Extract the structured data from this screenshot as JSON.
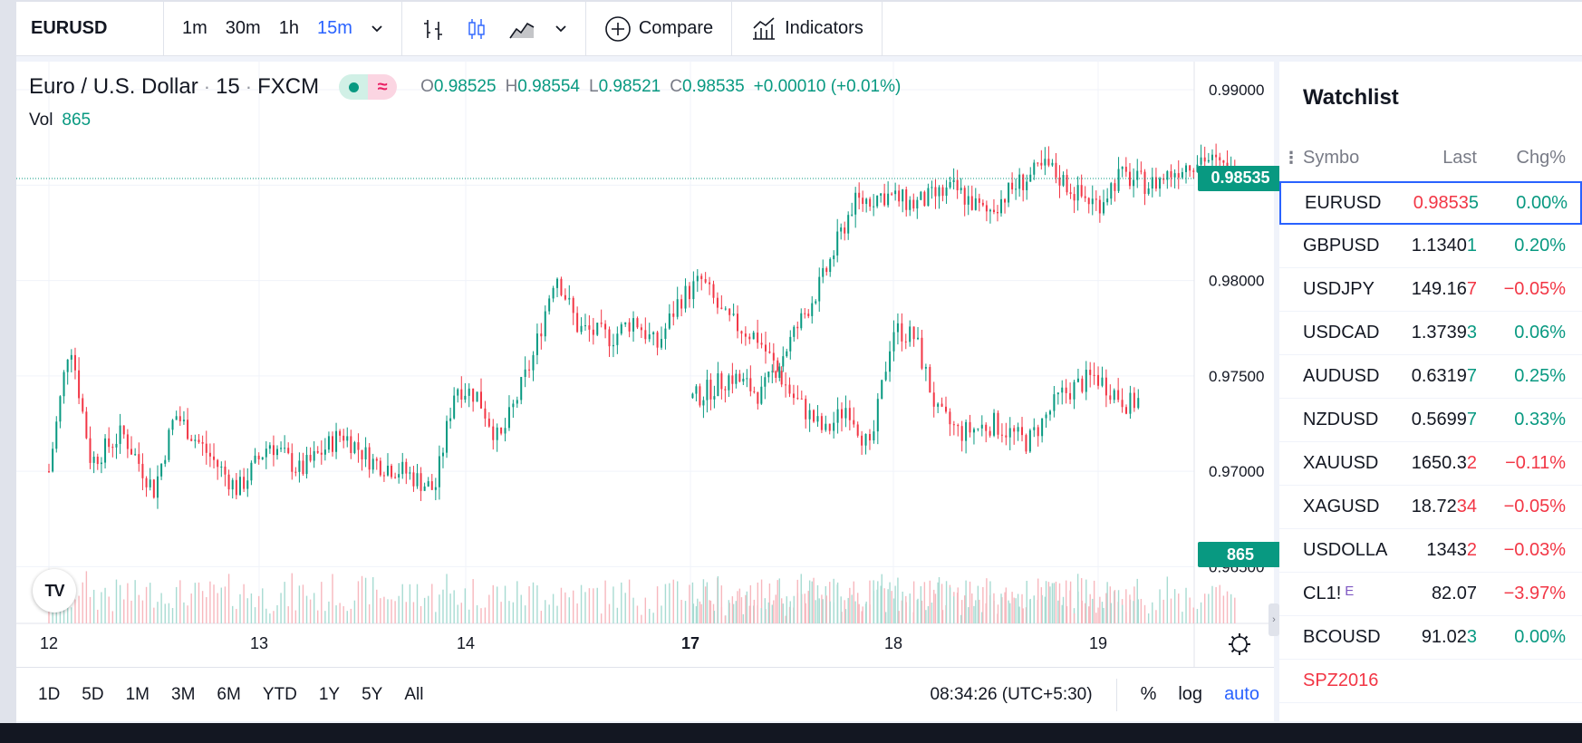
{
  "toolbar": {
    "symbol": "EURUSD",
    "intervals": [
      "1m",
      "30m",
      "1h",
      "15m"
    ],
    "active_interval": "15m",
    "compare_label": "Compare",
    "indicators_label": "Indicators"
  },
  "legend": {
    "name": "Euro / U.S. Dollar",
    "interval": "15",
    "exchange": "FXCM",
    "open_label": "O",
    "open": "0.98525",
    "high_label": "H",
    "high": "0.98554",
    "low_label": "L",
    "low": "0.98521",
    "close_label": "C",
    "close": "0.98535",
    "change": "+0.00010 (+0.01%)",
    "volume_label": "Vol",
    "volume": "865"
  },
  "logo_text": "TV",
  "colors": {
    "up": "#089981",
    "down": "#f23645",
    "accent": "#2962ff",
    "vol_up": "#a7dbd2",
    "vol_down": "#f7b7bd"
  },
  "chart_data": {
    "type": "candlestick",
    "y_ticks": [
      "0.99000",
      "0.98500",
      "0.98000",
      "0.97500",
      "0.97000",
      "0.96500"
    ],
    "ylim": [
      0.9625,
      0.991
    ],
    "x_ticks": [
      "12",
      "13",
      "14",
      "17",
      "18",
      "19"
    ],
    "bold_x_tick": "17",
    "last_price": "0.98535",
    "last_volume": "865",
    "price_path": [
      [
        12.0,
        0.97
      ],
      [
        12.1,
        0.977
      ],
      [
        12.2,
        0.9705
      ],
      [
        12.35,
        0.972
      ],
      [
        12.5,
        0.969
      ],
      [
        12.6,
        0.973
      ],
      [
        12.75,
        0.971
      ],
      [
        12.9,
        0.969
      ],
      [
        13.05,
        0.9715
      ],
      [
        13.2,
        0.97
      ],
      [
        13.4,
        0.972
      ],
      [
        13.55,
        0.9705
      ],
      [
        13.7,
        0.97
      ],
      [
        13.85,
        0.969
      ],
      [
        13.95,
        0.9745
      ],
      [
        14.05,
        0.974
      ],
      [
        14.15,
        0.9715
      ],
      [
        14.3,
        0.976
      ],
      [
        14.4,
        0.9805
      ],
      [
        14.5,
        0.9775
      ],
      [
        14.65,
        0.977
      ],
      [
        14.75,
        0.978
      ],
      [
        14.85,
        0.9765
      ],
      [
        14.95,
        0.979
      ],
      [
        15.05,
        0.98
      ],
      [
        15.15,
        0.978
      ],
      [
        15.3,
        0.977
      ],
      [
        15.45,
        0.974
      ],
      [
        15.6,
        0.972
      ],
      [
        15.7,
        0.9735
      ],
      [
        15.8,
        0.971
      ],
      [
        15.9,
        0.9775
      ],
      [
        16.0,
        0.977
      ],
      [
        16.1,
        0.973
      ],
      [
        16.2,
        0.972
      ],
      [
        16.35,
        0.9725
      ],
      [
        16.5,
        0.9715
      ],
      [
        16.65,
        0.974
      ],
      [
        16.8,
        0.975
      ],
      [
        16.95,
        0.9735
      ],
      [
        17.05,
        0.974
      ],
      [
        17.2,
        0.975
      ],
      [
        17.35,
        0.974
      ],
      [
        17.5,
        0.977
      ],
      [
        17.65,
        0.98
      ],
      [
        17.8,
        0.984
      ],
      [
        17.95,
        0.9845
      ],
      [
        18.1,
        0.984
      ],
      [
        18.3,
        0.9848
      ],
      [
        18.45,
        0.9835
      ],
      [
        18.6,
        0.985
      ],
      [
        18.75,
        0.986
      ],
      [
        18.9,
        0.9845
      ],
      [
        19.0,
        0.984
      ],
      [
        19.1,
        0.9855
      ],
      [
        19.25,
        0.985
      ],
      [
        19.4,
        0.986
      ],
      [
        19.5,
        0.9865
      ],
      [
        19.65,
        0.9855
      ]
    ]
  },
  "range_bar": {
    "ranges": [
      "1D",
      "5D",
      "1M",
      "3M",
      "6M",
      "YTD",
      "1Y",
      "5Y",
      "All"
    ],
    "time": "08:34:26 (UTC+5:30)",
    "percent": "%",
    "log": "log",
    "auto": "auto"
  },
  "watchlist": {
    "title": "Watchlist",
    "col_symbol": "Symbo",
    "col_last": "Last",
    "col_chg": "Chg%",
    "rows": [
      {
        "symbol": "EURUSD",
        "last": "0.9853",
        "last_tail": "5",
        "chg": "0.00%",
        "dir": "up",
        "last_dir": "down",
        "selected": true
      },
      {
        "symbol": "GBPUSD",
        "last": "1.1340",
        "last_tail": "1",
        "chg": "0.20%",
        "dir": "up",
        "last_dir": "neutral"
      },
      {
        "symbol": "USDJPY",
        "last": "149.16",
        "last_tail": "7",
        "chg": "−0.05%",
        "dir": "down",
        "last_dir": "neutral"
      },
      {
        "symbol": "USDCAD",
        "last": "1.3739",
        "last_tail": "3",
        "chg": "0.06%",
        "dir": "up",
        "last_dir": "neutral"
      },
      {
        "symbol": "AUDUSD",
        "last": "0.6319",
        "last_tail": "7",
        "chg": "0.25%",
        "dir": "up",
        "last_dir": "neutral"
      },
      {
        "symbol": "NZDUSD",
        "last": "0.5699",
        "last_tail": "7",
        "chg": "0.33%",
        "dir": "up",
        "last_dir": "neutral"
      },
      {
        "symbol": "XAUUSD",
        "last": "1650.3",
        "last_tail": "2",
        "chg": "−0.11%",
        "dir": "down",
        "last_dir": "neutral"
      },
      {
        "symbol": "XAGUSD",
        "last": "18.72",
        "last_tail": "34",
        "chg": "−0.05%",
        "dir": "down",
        "last_dir": "neutral"
      },
      {
        "symbol": "USDOLLA",
        "last": "1343",
        "last_tail": "2",
        "chg": "−0.03%",
        "dir": "down",
        "last_dir": "neutral"
      },
      {
        "symbol": "CL1!",
        "badge": "E",
        "last": "82.07",
        "last_tail": "",
        "chg": "−3.97%",
        "dir": "down",
        "last_dir": "neutral"
      },
      {
        "symbol": "BCOUSD",
        "last": "91.02",
        "last_tail": "3",
        "chg": "0.00%",
        "dir": "up",
        "last_dir": "neutral"
      },
      {
        "symbol": "SPZ2016",
        "last": "",
        "last_tail": "",
        "chg": "",
        "dir": "none",
        "last_dir": "neutral",
        "red_symbol": true
      }
    ]
  }
}
